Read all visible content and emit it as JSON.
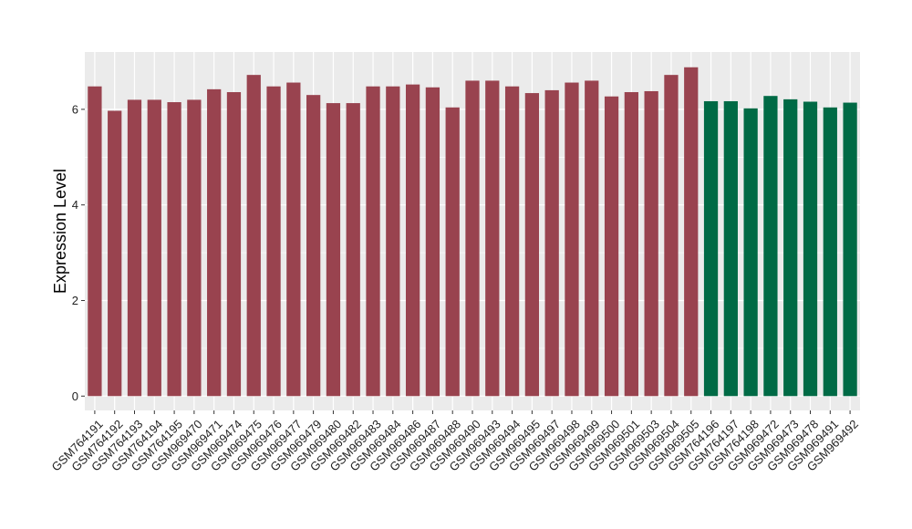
{
  "chart_data": {
    "type": "bar",
    "title": "",
    "xlabel": "",
    "ylabel": "Expression Level",
    "ylim": [
      -0.3,
      7.2
    ],
    "yticks": [
      0,
      2,
      4,
      6
    ],
    "grid": true,
    "categories": [
      "GSM764191",
      "GSM764192",
      "GSM764193",
      "GSM764194",
      "GSM764195",
      "GSM969470",
      "GSM969471",
      "GSM969474",
      "GSM969475",
      "GSM969476",
      "GSM969477",
      "GSM969479",
      "GSM969480",
      "GSM969482",
      "GSM969483",
      "GSM969484",
      "GSM969486",
      "GSM969487",
      "GSM969488",
      "GSM969490",
      "GSM969493",
      "GSM969494",
      "GSM969495",
      "GSM969497",
      "GSM969498",
      "GSM969499",
      "GSM969500",
      "GSM969501",
      "GSM969503",
      "GSM969504",
      "GSM969505",
      "GSM764196",
      "GSM764197",
      "GSM764198",
      "GSM969472",
      "GSM969473",
      "GSM969478",
      "GSM969491",
      "GSM969492"
    ],
    "values": [
      6.48,
      5.97,
      6.2,
      6.2,
      6.15,
      6.2,
      6.42,
      6.36,
      6.72,
      6.48,
      6.56,
      6.3,
      6.13,
      6.13,
      6.48,
      6.48,
      6.52,
      6.46,
      6.04,
      6.6,
      6.6,
      6.48,
      6.34,
      6.4,
      6.56,
      6.6,
      6.27,
      6.36,
      6.38,
      6.72,
      6.88,
      6.17,
      6.17,
      6.02,
      6.28,
      6.21,
      6.16,
      6.04,
      6.14
    ],
    "bar_colors": [
      "#99434f",
      "#99434f",
      "#99434f",
      "#99434f",
      "#99434f",
      "#99434f",
      "#99434f",
      "#99434f",
      "#99434f",
      "#99434f",
      "#99434f",
      "#99434f",
      "#99434f",
      "#99434f",
      "#99434f",
      "#99434f",
      "#99434f",
      "#99434f",
      "#99434f",
      "#99434f",
      "#99434f",
      "#99434f",
      "#99434f",
      "#99434f",
      "#99434f",
      "#99434f",
      "#99434f",
      "#99434f",
      "#99434f",
      "#99434f",
      "#99434f",
      "#006a45",
      "#006a45",
      "#006a45",
      "#006a45",
      "#006a45",
      "#006a45",
      "#006a45",
      "#006a45"
    ],
    "colors": {
      "panel": "#ebebeb",
      "grid": "#ffffff"
    }
  }
}
